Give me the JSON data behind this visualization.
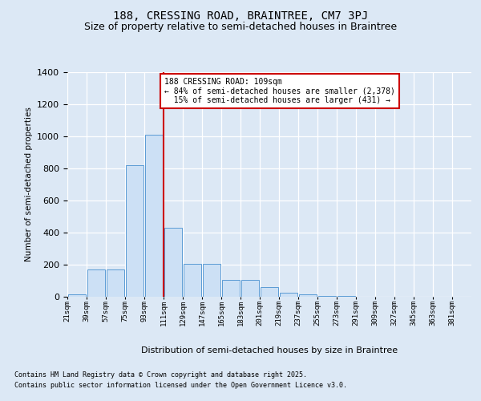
{
  "title1": "188, CRESSING ROAD, BRAINTREE, CM7 3PJ",
  "title2": "Size of property relative to semi-detached houses in Braintree",
  "xlabel": "Distribution of semi-detached houses by size in Braintree",
  "ylabel": "Number of semi-detached properties",
  "bin_labels": [
    "21sqm",
    "39sqm",
    "57sqm",
    "75sqm",
    "93sqm",
    "111sqm",
    "129sqm",
    "147sqm",
    "165sqm",
    "183sqm",
    "201sqm",
    "219sqm",
    "237sqm",
    "255sqm",
    "273sqm",
    "291sqm",
    "309sqm",
    "327sqm",
    "345sqm",
    "363sqm",
    "381sqm"
  ],
  "bin_edges": [
    21,
    39,
    57,
    75,
    93,
    111,
    129,
    147,
    165,
    183,
    201,
    219,
    237,
    255,
    273,
    291,
    309,
    327,
    345,
    363,
    381
  ],
  "counts": [
    15,
    170,
    170,
    820,
    1010,
    430,
    205,
    205,
    105,
    105,
    60,
    25,
    15,
    5,
    5,
    2,
    1,
    0,
    0,
    0
  ],
  "bar_facecolor": "#cce0f5",
  "bar_edgecolor": "#5b9bd5",
  "vline_x": 111,
  "vline_color": "#cc0000",
  "annotation_line1": "188 CRESSING ROAD: 109sqm",
  "annotation_line2": "← 84% of semi-detached houses are smaller (2,378)",
  "annotation_line3": "  15% of semi-detached houses are larger (431) →",
  "annotation_box_color": "#cc0000",
  "ylim": [
    0,
    1400
  ],
  "yticks": [
    0,
    200,
    400,
    600,
    800,
    1000,
    1200,
    1400
  ],
  "background_color": "#dce8f5",
  "footer1": "Contains HM Land Registry data © Crown copyright and database right 2025.",
  "footer2": "Contains public sector information licensed under the Open Government Licence v3.0."
}
